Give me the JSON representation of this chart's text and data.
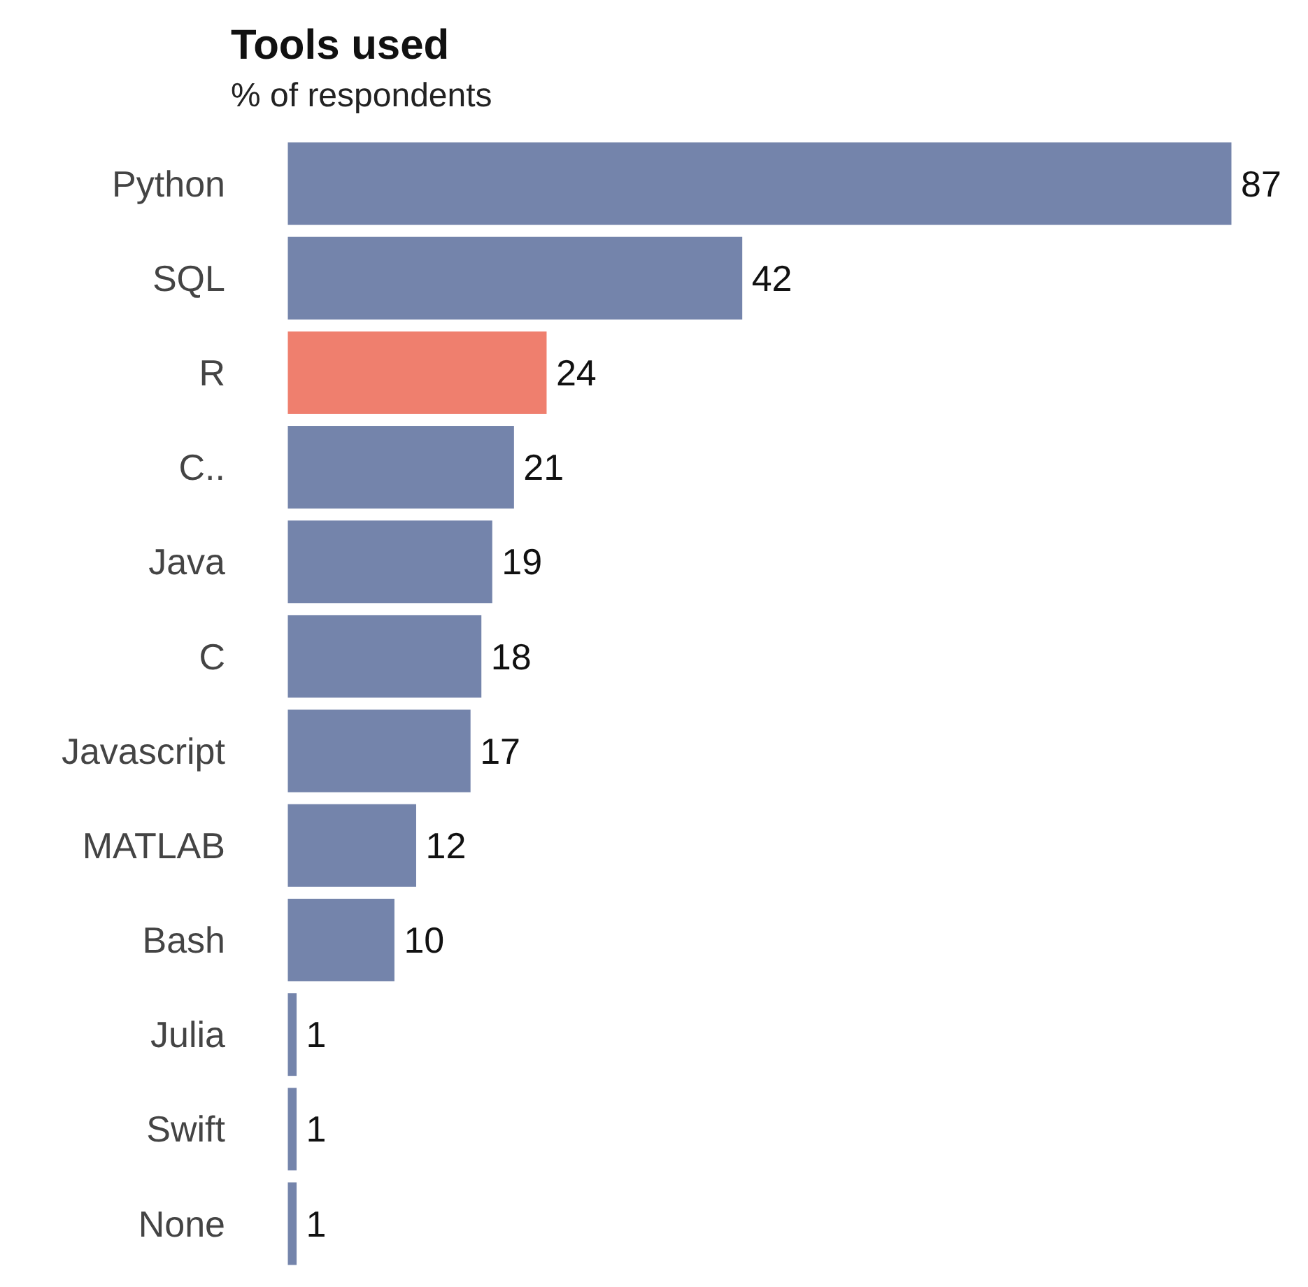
{
  "chart_data": {
    "type": "bar",
    "orientation": "horizontal",
    "title": "Tools used",
    "subtitle": "% of respondents",
    "categories": [
      "Python",
      "SQL",
      "R",
      "C..",
      "Java",
      "C",
      "Javascript",
      "MATLAB",
      "Bash",
      "Julia",
      "Swift",
      "None"
    ],
    "values": [
      87,
      42,
      24,
      21,
      19,
      18,
      17,
      12,
      10,
      1,
      1,
      1
    ],
    "colors": [
      "#7484ab",
      "#7484ab",
      "#ef7f6e",
      "#7484ab",
      "#7484ab",
      "#7484ab",
      "#7484ab",
      "#7484ab",
      "#7484ab",
      "#7484ab",
      "#7484ab",
      "#7484ab"
    ],
    "data_labels": true,
    "tick_labels": "y"
  }
}
